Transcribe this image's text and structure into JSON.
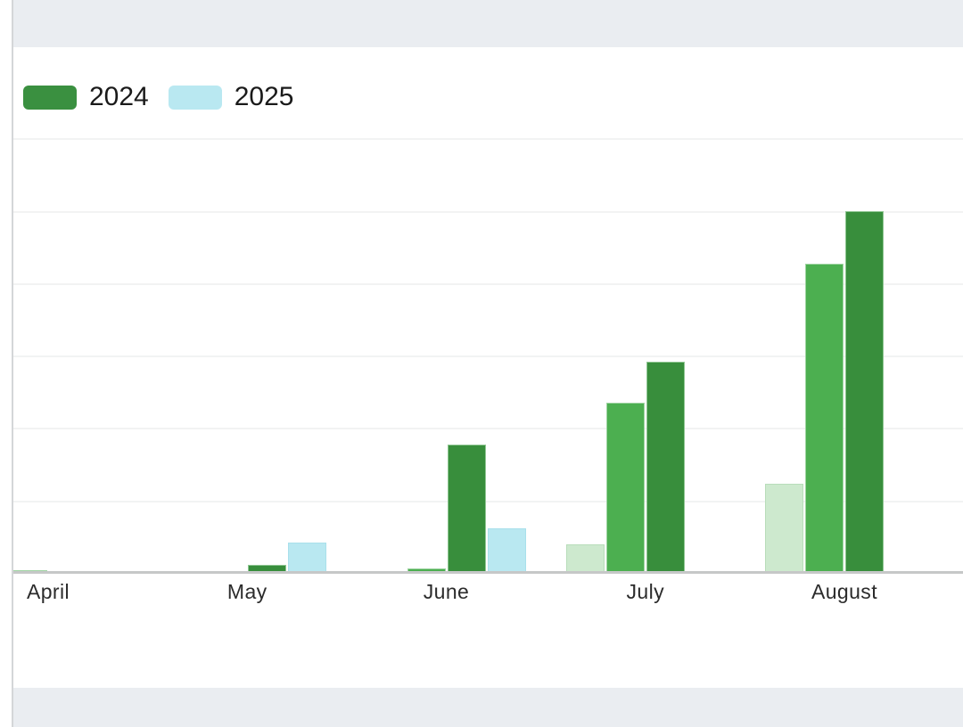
{
  "page": {
    "background_color": "#ffffff",
    "band_color": "#eaedf1",
    "divider_color": "#d4d6d8",
    "card_color": "#ffffff"
  },
  "legend": {
    "position": "top-left",
    "items": [
      {
        "label": "2024",
        "color": "#3a9040",
        "border": "#3a9040"
      },
      {
        "label": "2025",
        "color": "#b9e8f1",
        "border": "#b9e8f1"
      }
    ]
  },
  "chart_data": {
    "type": "bar",
    "title": "",
    "categories": [
      "April",
      "May",
      "June",
      "July",
      "August"
    ],
    "series": [
      {
        "name": "(unlabeled pale green)",
        "color": "#cde9ce",
        "border": "#b8ddba",
        "values": [
          0,
          0,
          0,
          39,
          123
        ]
      },
      {
        "name": "(unlabeled medium green)",
        "color": "#4caf50",
        "border": "#a0d4a3",
        "values": [
          3,
          0,
          6,
          235,
          427
        ]
      },
      {
        "name": "2024",
        "color": "#388e3c",
        "border": "#8fc692",
        "values": [
          0,
          11,
          177,
          292,
          500
        ]
      },
      {
        "name": "2025",
        "color": "#b9e8f1",
        "border": "#a9e0eb",
        "values": [
          0,
          42,
          61,
          0,
          0
        ]
      }
    ],
    "legend_entries": [
      "2024",
      "2025"
    ],
    "x_axis": {
      "labels_visible": true
    },
    "y_axis": {
      "labels_visible": false,
      "range": [
        0,
        600
      ],
      "gridline_interval": 100,
      "gridlines_visible": true
    },
    "grid_color": "#f2f3f3",
    "axis_line_color": "#c6c8c8",
    "label_color": "#2b2b2b"
  }
}
